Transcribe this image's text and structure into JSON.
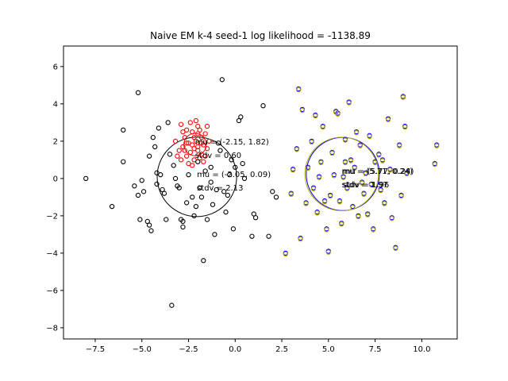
{
  "chart_data": {
    "type": "scatter",
    "title": "Naive EM k-4 seed-1 log likelihood = -1138.89",
    "xlabel": "",
    "ylabel": "",
    "xlim": [
      -9.2,
      11.9
    ],
    "ylim": [
      -8.6,
      7.1
    ],
    "x_ticks": [
      -7.5,
      -5.0,
      -2.5,
      0.0,
      2.5,
      5.0,
      7.5,
      10.0
    ],
    "y_ticks": [
      -8,
      -6,
      -4,
      -2,
      0,
      2,
      4,
      6
    ],
    "x_tick_labels": [
      "−7.5",
      "−5.0",
      "−2.5",
      "0.0",
      "2.5",
      "5.0",
      "7.5",
      "10.0"
    ],
    "y_tick_labels": [
      "−8",
      "−6",
      "−4",
      "−2",
      "0",
      "2",
      "4",
      "6"
    ],
    "grid": false,
    "colors": {
      "red": "#ff0000",
      "black": "#000000",
      "blue": "#0000ff",
      "gold": "#b8a800"
    },
    "series": [
      {
        "color": "#ff0000",
        "points": [
          [
            -2.2,
            1.6
          ],
          [
            -2.5,
            1.9
          ],
          [
            -1.8,
            2.2
          ],
          [
            -2.0,
            1.5
          ],
          [
            -2.6,
            1.2
          ],
          [
            -1.7,
            1.8
          ],
          [
            -2.3,
            2.5
          ],
          [
            -2.8,
            1.7
          ],
          [
            -1.9,
            1.1
          ],
          [
            -2.1,
            2.0
          ],
          [
            -2.4,
            1.4
          ],
          [
            -1.6,
            2.4
          ],
          [
            -2.7,
            2.2
          ],
          [
            -2.0,
            2.8
          ],
          [
            -1.5,
            1.6
          ],
          [
            -2.9,
            1.0
          ],
          [
            -2.2,
            1.0
          ],
          [
            -1.8,
            1.3
          ],
          [
            -2.6,
            2.6
          ],
          [
            -2.3,
            1.8
          ],
          [
            -2.0,
            2.4
          ],
          [
            -1.7,
            0.9
          ],
          [
            -2.5,
            0.8
          ],
          [
            -2.8,
            2.5
          ],
          [
            -3.0,
            1.5
          ],
          [
            -1.4,
            2.0
          ],
          [
            -2.1,
            3.1
          ],
          [
            -2.4,
            3.0
          ],
          [
            -3.2,
            2.0
          ],
          [
            -1.9,
            2.6
          ],
          [
            -2.2,
            2.2
          ],
          [
            -2.7,
            1.5
          ],
          [
            -1.6,
            1.2
          ],
          [
            -2.9,
            2.9
          ],
          [
            -3.1,
            1.2
          ],
          [
            -2.0,
            1.7
          ],
          [
            -1.5,
            2.8
          ],
          [
            -2.3,
            0.7
          ],
          [
            -2.6,
            1.9
          ],
          [
            -1.8,
            1.9
          ]
        ]
      },
      {
        "color": "#000000",
        "points": [
          [
            -8.0,
            0.0
          ],
          [
            -6.6,
            -1.5
          ],
          [
            -6.0,
            2.6
          ],
          [
            -6.0,
            0.9
          ],
          [
            -5.2,
            4.6
          ],
          [
            -5.4,
            -0.4
          ],
          [
            -5.0,
            -0.1
          ],
          [
            -5.2,
            -0.9
          ],
          [
            -5.1,
            -2.2
          ],
          [
            -4.7,
            -2.3
          ],
          [
            -4.6,
            -2.5
          ],
          [
            -4.5,
            -2.8
          ],
          [
            -4.6,
            1.2
          ],
          [
            -4.4,
            2.2
          ],
          [
            -4.3,
            1.7
          ],
          [
            -4.1,
            2.7
          ],
          [
            -4.0,
            0.2
          ],
          [
            -4.2,
            -0.3
          ],
          [
            -3.8,
            -0.8
          ],
          [
            -3.6,
            3.0
          ],
          [
            -3.5,
            1.3
          ],
          [
            -3.3,
            0.7
          ],
          [
            -3.2,
            0.0
          ],
          [
            -3.0,
            -0.5
          ],
          [
            -3.1,
            -0.4
          ],
          [
            -2.9,
            -2.2
          ],
          [
            -2.8,
            -2.6
          ],
          [
            -2.8,
            -2.3
          ],
          [
            -3.4,
            -6.8
          ],
          [
            -2.5,
            0.2
          ],
          [
            -2.3,
            -1.0
          ],
          [
            -2.2,
            -2.0
          ],
          [
            -2.1,
            -1.5
          ],
          [
            -1.9,
            -0.5
          ],
          [
            -1.7,
            -4.4
          ],
          [
            -1.5,
            -2.2
          ],
          [
            -1.6,
            0.4
          ],
          [
            -1.3,
            0.6
          ],
          [
            -1.2,
            -1.4
          ],
          [
            -1.1,
            -3.0
          ],
          [
            -1.0,
            -0.6
          ],
          [
            -0.8,
            1.5
          ],
          [
            -0.7,
            5.3
          ],
          [
            -0.6,
            -0.7
          ],
          [
            -0.5,
            -1.8
          ],
          [
            -0.4,
            -0.9
          ],
          [
            -0.3,
            0.2
          ],
          [
            -0.1,
            -2.7
          ],
          [
            0.0,
            0.6
          ],
          [
            0.3,
            3.3
          ],
          [
            0.2,
            3.1
          ],
          [
            0.4,
            0.8
          ],
          [
            0.5,
            0.0
          ],
          [
            0.9,
            -3.1
          ],
          [
            1.0,
            -1.9
          ],
          [
            1.1,
            -2.1
          ],
          [
            1.5,
            3.9
          ],
          [
            1.8,
            -3.1
          ],
          [
            2.0,
            -0.7
          ],
          [
            2.2,
            -1.0
          ],
          [
            -3.9,
            -0.6
          ],
          [
            -4.9,
            -0.7
          ],
          [
            -2.0,
            0.9
          ],
          [
            -0.9,
            1.9
          ],
          [
            -3.7,
            -2.2
          ],
          [
            -1.8,
            -1.0
          ],
          [
            -0.2,
            1.0
          ],
          [
            -2.6,
            -1.3
          ],
          [
            -4.2,
            0.3
          ],
          [
            -1.3,
            -0.2
          ]
        ]
      },
      {
        "color": "#0000ff",
        "points": [
          [
            3.4,
            4.8
          ],
          [
            3.3,
            1.6
          ],
          [
            3.6,
            3.7
          ],
          [
            3.0,
            -0.8
          ],
          [
            2.7,
            -4.0
          ],
          [
            3.1,
            0.5
          ],
          [
            3.8,
            -1.3
          ],
          [
            3.9,
            0.6
          ],
          [
            4.1,
            2.0
          ],
          [
            4.3,
            3.4
          ],
          [
            4.2,
            -0.5
          ],
          [
            4.4,
            -1.8
          ],
          [
            4.6,
            0.9
          ],
          [
            4.7,
            2.8
          ],
          [
            4.9,
            -2.7
          ],
          [
            5.0,
            -3.9
          ],
          [
            5.2,
            1.4
          ],
          [
            5.3,
            0.2
          ],
          [
            5.4,
            3.6
          ],
          [
            5.5,
            3.5
          ],
          [
            5.6,
            -1.2
          ],
          [
            5.7,
            -2.4
          ],
          [
            5.8,
            0.1
          ],
          [
            5.9,
            2.1
          ],
          [
            6.0,
            -0.5
          ],
          [
            6.1,
            4.1
          ],
          [
            6.2,
            1.0
          ],
          [
            6.3,
            -1.5
          ],
          [
            6.4,
            0.6
          ],
          [
            6.5,
            2.5
          ],
          [
            6.6,
            -2.0
          ],
          [
            6.7,
            1.8
          ],
          [
            6.9,
            -0.8
          ],
          [
            7.0,
            0.3
          ],
          [
            7.1,
            -1.9
          ],
          [
            7.2,
            2.3
          ],
          [
            7.4,
            -2.7
          ],
          [
            7.5,
            0.9
          ],
          [
            7.7,
            1.3
          ],
          [
            7.8,
            -0.6
          ],
          [
            7.9,
            1.0
          ],
          [
            8.0,
            -1.3
          ],
          [
            8.2,
            3.2
          ],
          [
            8.3,
            0.5
          ],
          [
            8.4,
            -2.1
          ],
          [
            8.6,
            -3.7
          ],
          [
            8.8,
            1.8
          ],
          [
            8.9,
            -0.9
          ],
          [
            9.0,
            4.4
          ],
          [
            9.1,
            2.8
          ],
          [
            9.2,
            0.3
          ],
          [
            10.8,
            1.8
          ],
          [
            10.7,
            0.8
          ],
          [
            4.8,
            -1.2
          ],
          [
            5.1,
            -0.9
          ],
          [
            6.8,
            -0.2
          ],
          [
            4.5,
            0.1
          ],
          [
            5.9,
            0.9
          ],
          [
            3.5,
            -3.2
          ],
          [
            7.3,
            -0.3
          ]
        ]
      },
      {
        "color": "#b8a800",
        "points": [
          [
            3.4,
            4.75
          ],
          [
            3.3,
            1.55
          ],
          [
            3.6,
            3.65
          ],
          [
            3.0,
            -0.85
          ],
          [
            2.7,
            -4.05
          ],
          [
            3.1,
            0.45
          ],
          [
            3.8,
            -1.35
          ],
          [
            3.9,
            0.55
          ],
          [
            4.1,
            1.95
          ],
          [
            4.3,
            3.35
          ],
          [
            4.2,
            -0.55
          ],
          [
            4.4,
            -1.85
          ],
          [
            4.6,
            0.85
          ],
          [
            4.7,
            2.75
          ],
          [
            4.9,
            -2.75
          ],
          [
            5.0,
            -3.95
          ],
          [
            5.2,
            1.35
          ],
          [
            5.3,
            0.15
          ],
          [
            5.4,
            3.55
          ],
          [
            5.5,
            3.45
          ],
          [
            5.6,
            -1.25
          ],
          [
            5.7,
            -2.45
          ],
          [
            5.8,
            0.05
          ],
          [
            5.9,
            2.05
          ],
          [
            6.0,
            -0.55
          ],
          [
            6.1,
            4.05
          ],
          [
            6.2,
            0.95
          ],
          [
            6.3,
            -1.55
          ],
          [
            6.4,
            0.55
          ],
          [
            6.5,
            2.45
          ],
          [
            6.6,
            -2.05
          ],
          [
            6.7,
            1.75
          ],
          [
            6.9,
            -0.85
          ],
          [
            7.0,
            0.25
          ],
          [
            7.1,
            -1.95
          ],
          [
            7.2,
            2.25
          ],
          [
            7.4,
            -2.75
          ],
          [
            7.5,
            0.85
          ],
          [
            7.7,
            1.25
          ],
          [
            7.8,
            -0.65
          ],
          [
            7.9,
            0.95
          ],
          [
            8.0,
            -1.35
          ],
          [
            8.2,
            3.15
          ],
          [
            8.3,
            0.45
          ],
          [
            8.4,
            -2.15
          ],
          [
            8.6,
            -3.75
          ],
          [
            8.8,
            1.75
          ],
          [
            8.9,
            -0.95
          ],
          [
            9.0,
            4.35
          ],
          [
            9.1,
            2.75
          ],
          [
            9.2,
            0.25
          ],
          [
            10.8,
            1.75
          ],
          [
            10.7,
            0.75
          ],
          [
            4.8,
            -1.25
          ],
          [
            5.1,
            -0.95
          ],
          [
            6.8,
            -0.25
          ],
          [
            4.5,
            0.05
          ],
          [
            5.9,
            0.85
          ],
          [
            3.5,
            -3.25
          ],
          [
            7.3,
            -0.35
          ]
        ]
      }
    ],
    "components": [
      {
        "color": "#ff0000",
        "mu_x": -2.15,
        "mu_y": 1.82,
        "sd": 0.6,
        "mu_label": "mu = (-2.15, 1.82)",
        "sd_label": "stdv = 0.60"
      },
      {
        "color": "#000000",
        "mu_x": -2.05,
        "mu_y": 0.09,
        "sd": 2.13,
        "mu_label": "mu = (-2.05, 0.09)",
        "sd_label": "stdv = 2.13"
      },
      {
        "color": "#0000ff",
        "mu_x": 5.77,
        "mu_y": 0.24,
        "sd": 1.96,
        "mu_label": "mu = (5.77, 0.24)",
        "sd_label": "stdv = 1.96"
      },
      {
        "color": "#b8a800",
        "mu_x": 5.71,
        "mu_y": 0.24,
        "sd": 1.97,
        "mu_label": "mu = (5.71, 0.24)",
        "sd_label": "stdv = 1.97"
      }
    ]
  }
}
